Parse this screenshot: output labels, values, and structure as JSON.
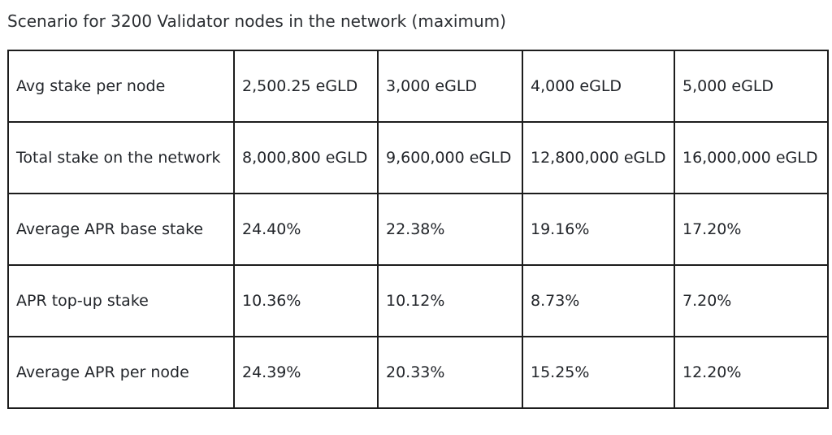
{
  "caption": "Scenario for 3200 Validator nodes in the network (maximum)",
  "table": {
    "rows": [
      {
        "label": "Avg stake per node",
        "values": [
          "2,500.25 eGLD",
          "3,000 eGLD",
          "4,000 eGLD",
          "5,000 eGLD"
        ]
      },
      {
        "label": "Total stake on the network",
        "values": [
          "8,000,800 eGLD",
          "9,600,000 eGLD",
          "12,800,000 eGLD",
          "16,000,000 eGLD"
        ]
      },
      {
        "label": "Average APR base stake",
        "values": [
          "24.40%",
          "22.38%",
          "19.16%",
          "17.20%"
        ]
      },
      {
        "label": "APR top-up stake",
        "values": [
          "10.36%",
          "10.12%",
          "8.73%",
          "7.20%"
        ]
      },
      {
        "label": "Average APR per node",
        "values": [
          "24.39%",
          "20.33%",
          "15.25%",
          "12.20%"
        ]
      }
    ]
  }
}
